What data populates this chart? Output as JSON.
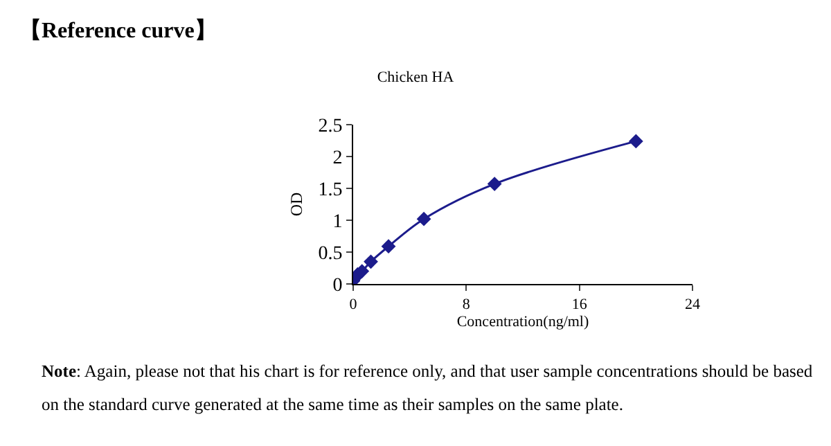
{
  "chart_data": {
    "type": "line",
    "title": "【Reference curve】",
    "subtitle": "Chicken HA",
    "xlabel": "Concentration(ng/ml)",
    "ylabel": "OD",
    "x": [
      0,
      0.156,
      0.312,
      0.625,
      1.25,
      2.5,
      5,
      10,
      20
    ],
    "series": [
      {
        "color": "#1c1c8c",
        "values": [
          0.05,
          0.1,
          0.15,
          0.2,
          0.35,
          0.59,
          1.02,
          1.57,
          2.24
        ]
      }
    ],
    "xlim": [
      0,
      24
    ],
    "xticks": [
      0,
      8,
      16,
      24
    ],
    "ylim": [
      0,
      2.5
    ],
    "yticks": [
      0,
      0.5,
      1,
      1.5,
      2,
      2.5
    ],
    "marker": "diamond",
    "line_style": "solid",
    "grid": false,
    "annotations": [
      "Note: Again, please not that his chart is for reference only, and that user sample concentrations should be based on the standard curve generated at the same time as their samples on the same plate."
    ]
  }
}
